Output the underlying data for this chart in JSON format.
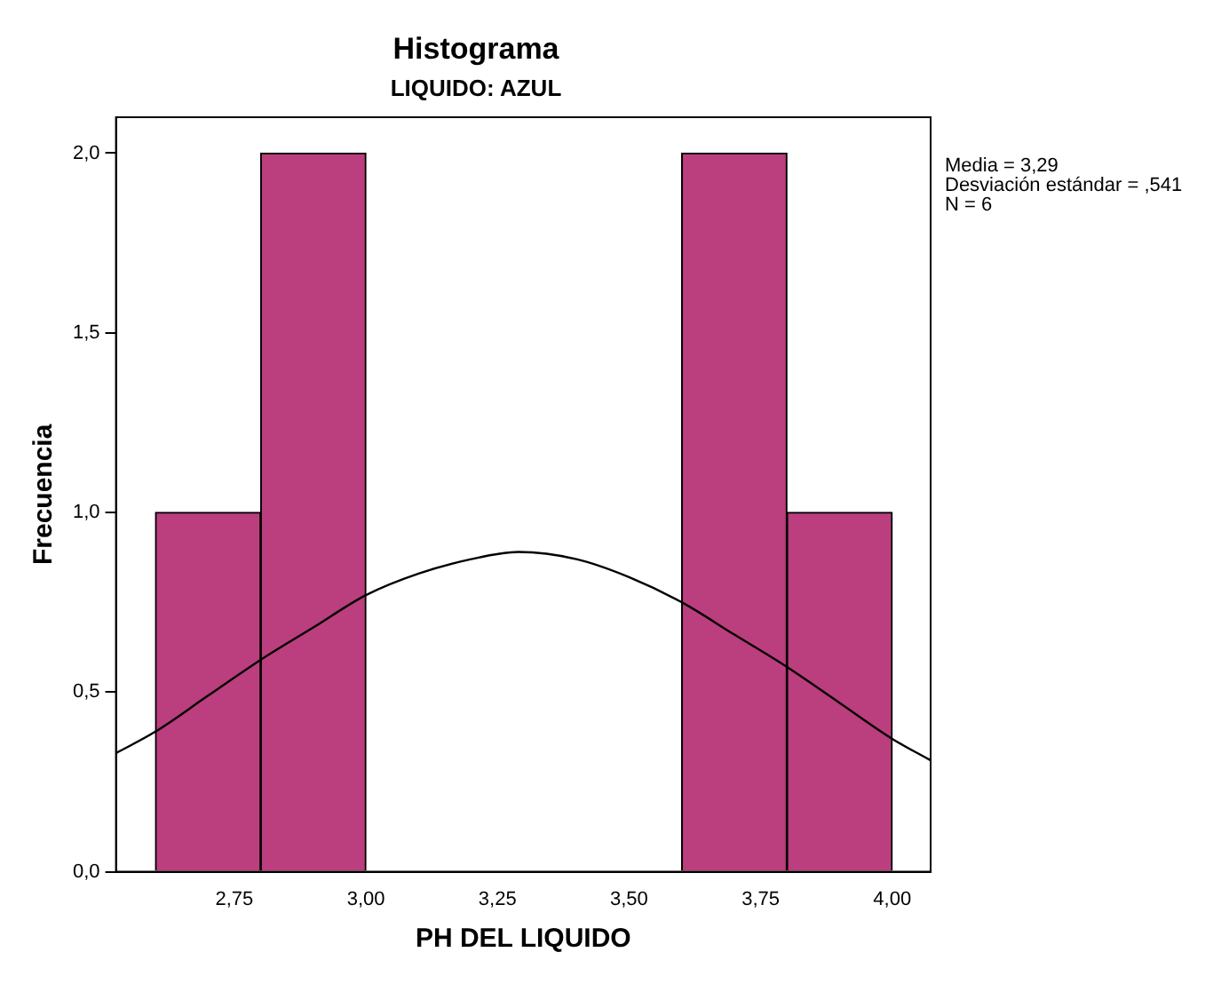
{
  "chart_data": {
    "type": "histogram",
    "title": "Histograma",
    "subtitle": "LIQUIDO: AZUL",
    "xlabel": "PH DEL LIQUIDO",
    "ylabel": "Frecuencia",
    "bins": [
      2.6,
      2.8,
      3.0,
      3.2,
      3.4,
      3.6,
      3.8,
      4.0
    ],
    "values": [
      1,
      2,
      0,
      0,
      0,
      2,
      1
    ],
    "color": "#bb3e7e",
    "series": [
      {
        "type": "line",
        "color": "#000000",
        "x": [
          2.525,
          2.6,
          2.7,
          2.8,
          2.9,
          3.0,
          3.1,
          3.2,
          3.29,
          3.4,
          3.5,
          3.6,
          3.7,
          3.8,
          3.9,
          4.0,
          4.073
        ],
        "values": [
          0.33,
          0.39,
          0.49,
          0.59,
          0.68,
          0.77,
          0.83,
          0.87,
          0.89,
          0.87,
          0.82,
          0.75,
          0.66,
          0.57,
          0.47,
          0.37,
          0.31
        ]
      }
    ],
    "xlim": [
      2.525,
      4.073
    ],
    "xticks": [
      {
        "value": 2.75,
        "label": "2,75"
      },
      {
        "value": 3.0,
        "label": "3,00"
      },
      {
        "value": 3.25,
        "label": "3,25"
      },
      {
        "value": 3.5,
        "label": "3,50"
      },
      {
        "value": 3.75,
        "label": "3,75"
      },
      {
        "value": 4.0,
        "label": "4,00"
      }
    ],
    "ylim": [
      0,
      2.1
    ],
    "yticks": [
      {
        "value": 0,
        "label": "0,0"
      },
      {
        "value": 0.5,
        "label": "0,5"
      },
      {
        "value": 1.0,
        "label": "1,0"
      },
      {
        "value": 1.5,
        "label": "1,5"
      },
      {
        "value": 2.0,
        "label": "2,0"
      }
    ],
    "grid": false,
    "legend": false,
    "annotations": [
      "Media = 3,29",
      "Desviación estándar = ,541",
      "N = 6"
    ]
  }
}
